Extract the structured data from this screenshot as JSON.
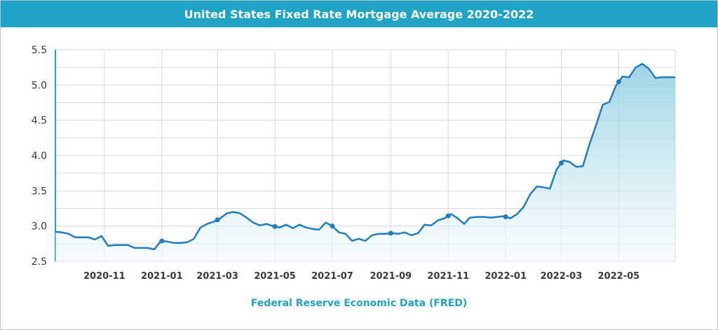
{
  "colors": {
    "accent": "#1fa3c7",
    "line": "#1f7dc1",
    "area_top": "#7fc7dc",
    "area_bottom": "#f2fafc",
    "grid": "#d3d9de"
  },
  "chart_data": {
    "type": "area",
    "title": "United States Fixed Rate Mortgage Average 2020-2022",
    "source": "Federal Reserve Economic Data (FRED)",
    "xlabel": "",
    "ylabel": "",
    "ylim": [
      2.5,
      5.5
    ],
    "xlim": [
      "2020-09-10",
      "2022-06-30"
    ],
    "grid": true,
    "y_ticks": [
      "2.5",
      "3.0",
      "3.5",
      "4.0",
      "4.5",
      "5.0",
      "5.5"
    ],
    "x_ticks": [
      {
        "x": "2020-11-01",
        "label": "2020-11"
      },
      {
        "x": "2021-01-01",
        "label": "2021-01"
      },
      {
        "x": "2021-03-01",
        "label": "2021-03"
      },
      {
        "x": "2021-05-01",
        "label": "2021-05"
      },
      {
        "x": "2021-07-01",
        "label": "2021-07"
      },
      {
        "x": "2021-09-01",
        "label": "2021-09"
      },
      {
        "x": "2021-11-01",
        "label": "2021-11"
      },
      {
        "x": "2022-01-01",
        "label": "2022-01"
      },
      {
        "x": "2022-03-01",
        "label": "2022-03"
      },
      {
        "x": "2022-05-01",
        "label": "2022-05"
      }
    ],
    "series": [
      {
        "x": [
          "2020-09-10",
          "2020-09-17",
          "2020-09-24",
          "2020-10-01",
          "2020-10-08",
          "2020-10-15",
          "2020-10-22",
          "2020-10-29",
          "2020-11-05",
          "2020-11-12",
          "2020-11-19",
          "2020-11-26",
          "2020-12-03",
          "2020-12-10",
          "2020-12-17",
          "2020-12-24",
          "2020-12-31",
          "2021-01-07",
          "2021-01-14",
          "2021-01-21",
          "2021-01-28",
          "2021-02-04",
          "2021-02-11",
          "2021-02-18",
          "2021-02-25",
          "2021-03-04",
          "2021-03-11",
          "2021-03-18",
          "2021-03-25",
          "2021-04-01",
          "2021-04-08",
          "2021-04-15",
          "2021-04-22",
          "2021-04-29",
          "2021-05-06",
          "2021-05-13",
          "2021-05-20",
          "2021-05-27",
          "2021-06-03",
          "2021-06-10",
          "2021-06-17",
          "2021-06-24",
          "2021-07-01",
          "2021-07-08",
          "2021-07-15",
          "2021-07-22",
          "2021-07-29",
          "2021-08-05",
          "2021-08-12",
          "2021-08-19",
          "2021-08-26",
          "2021-09-02",
          "2021-09-09",
          "2021-09-16",
          "2021-09-23",
          "2021-09-30",
          "2021-10-07",
          "2021-10-14",
          "2021-10-21",
          "2021-10-28",
          "2021-11-04",
          "2021-11-10",
          "2021-11-18",
          "2021-11-24",
          "2021-12-02",
          "2021-12-09",
          "2021-12-16",
          "2021-12-23",
          "2021-12-30",
          "2022-01-06",
          "2022-01-13",
          "2022-01-20",
          "2022-01-27",
          "2022-02-03",
          "2022-02-10",
          "2022-02-17",
          "2022-02-24",
          "2022-03-03",
          "2022-03-10",
          "2022-03-17",
          "2022-03-24",
          "2022-03-31",
          "2022-04-07",
          "2022-04-14",
          "2022-04-21",
          "2022-04-28",
          "2022-05-05",
          "2022-05-12",
          "2022-05-19",
          "2022-05-26",
          "2022-06-02",
          "2022-06-09",
          "2022-06-16",
          "2022-06-23",
          "2022-06-30"
        ],
        "values": [
          2.92,
          2.91,
          2.89,
          2.84,
          2.84,
          2.84,
          2.81,
          2.86,
          2.72,
          2.73,
          2.73,
          2.73,
          2.69,
          2.69,
          2.69,
          2.67,
          2.79,
          2.78,
          2.76,
          2.76,
          2.77,
          2.82,
          2.98,
          3.03,
          3.06,
          3.11,
          3.18,
          3.2,
          3.18,
          3.12,
          3.05,
          3.01,
          3.03,
          3.0,
          2.98,
          3.02,
          2.97,
          3.02,
          2.98,
          2.96,
          2.95,
          3.05,
          3.0,
          2.91,
          2.89,
          2.79,
          2.82,
          2.79,
          2.87,
          2.89,
          2.89,
          2.9,
          2.89,
          2.91,
          2.87,
          2.9,
          3.02,
          3.01,
          3.08,
          3.11,
          3.17,
          3.12,
          3.03,
          3.12,
          3.13,
          3.13,
          3.12,
          3.13,
          3.14,
          3.11,
          3.17,
          3.27,
          3.45,
          3.56,
          3.55,
          3.53,
          3.8,
          3.93,
          3.91,
          3.84,
          3.85,
          4.16,
          4.43,
          4.72,
          4.76,
          4.99,
          5.12,
          5.11,
          5.25,
          5.3,
          5.23,
          5.1,
          5.11,
          5.11,
          5.11
        ],
        "markers_x": [
          "2021-01-01",
          "2021-03-01",
          "2021-05-01",
          "2021-07-01",
          "2021-09-01",
          "2021-11-01",
          "2022-01-01",
          "2022-03-01",
          "2022-05-01"
        ]
      }
    ]
  }
}
